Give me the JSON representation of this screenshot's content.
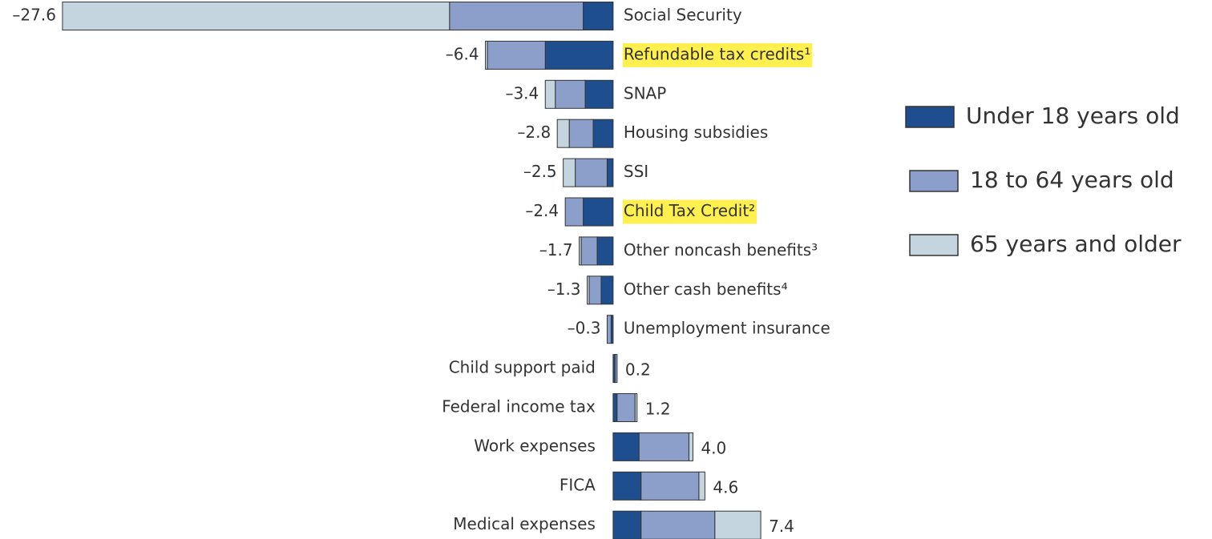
{
  "chart_data": {
    "type": "stacked-bar-horizontal",
    "categories": [
      "Social Security",
      "Refundable tax credits¹",
      "SNAP",
      "Housing subsidies",
      "SSI",
      "Child Tax Credit²",
      "Other noncash benefits³",
      "Other cash benefits⁴",
      "Unemployment insurance",
      "Child support paid",
      "Federal income tax",
      "Work expenses",
      "FICA",
      "Medical expenses"
    ],
    "highlighted": [
      1,
      5
    ],
    "series": [
      {
        "name": "Under 18 years old",
        "color": "#1f4e8f",
        "values": [
          -1.5,
          -3.4,
          -1.4,
          -1.0,
          -0.3,
          -1.5,
          -0.8,
          -0.6,
          -0.1,
          0.1,
          0.2,
          1.3,
          1.4,
          1.4
        ]
      },
      {
        "name": "18 to 64 years old",
        "color": "#8c9fcb",
        "values": [
          -6.7,
          -2.9,
          -1.5,
          -1.2,
          -1.6,
          -0.9,
          -0.8,
          -0.6,
          -0.2,
          0.1,
          0.9,
          2.5,
          2.9,
          3.7
        ]
      },
      {
        "name": "65 years and older",
        "color": "#c5d5e0",
        "values": [
          -19.4,
          -0.1,
          -0.5,
          -0.6,
          -0.6,
          0,
          -0.1,
          -0.1,
          0,
          0,
          0.1,
          0.2,
          0.3,
          2.3
        ]
      }
    ],
    "totals": [
      -27.6,
      -6.4,
      -3.4,
      -2.8,
      -2.5,
      -2.4,
      -1.7,
      -1.3,
      -0.3,
      0.2,
      1.2,
      4.0,
      4.6,
      7.4
    ],
    "value_labels": [
      "–27.6",
      "–6.4",
      "–3.4",
      "–2.8",
      "–2.5",
      "–2.4",
      "–1.7",
      "–1.3",
      "–0.3",
      "0.2",
      "1.2",
      "4.0",
      "4.6",
      "7.4"
    ],
    "xlim": [
      -28,
      8
    ]
  }
}
